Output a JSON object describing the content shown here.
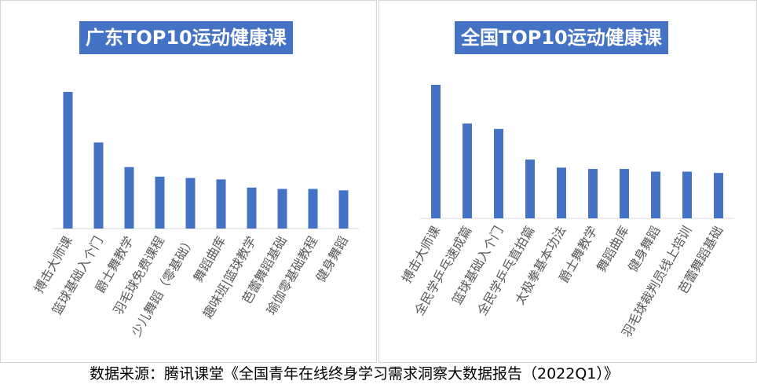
{
  "source": "数据来源：腾讯课堂《全国青年在线终身学习需求洞察大数据报告（2022Q1）》",
  "colors": {
    "bar": "#4472c4",
    "title_bg": "#4472c4",
    "axis": "#d9d9d9"
  },
  "chart_data": [
    {
      "type": "bar",
      "title": "广东TOP10运动健康课",
      "categories": [
        "搏击大师课",
        "篮球基础入个门",
        "爵士舞教学",
        "羽毛球免费课程",
        "少儿舞蹈（零基础）",
        "舞蹈曲库",
        "趣味班|篮球教学",
        "芭蕾舞蹈基础",
        "瑜伽零基础教程",
        "健身舞蹈"
      ],
      "values": [
        100,
        63,
        45,
        38,
        37,
        36,
        30,
        29,
        29,
        28
      ],
      "ylim": [
        0,
        100
      ],
      "grid": false,
      "legend": "none"
    },
    {
      "type": "bar",
      "title": "全国TOP10运动健康课",
      "categories": [
        "搏击大师课",
        "全民学乒乓速成篇",
        "篮球基础入个门",
        "全民学乒乓直拍篇",
        "太极拳基本功法",
        "爵士舞教学",
        "舞蹈曲库",
        "健身舞蹈",
        "羽毛球裁判员线上培训",
        "芭蕾舞蹈基础"
      ],
      "values": [
        100,
        71,
        67,
        44,
        38,
        37,
        37,
        35,
        35,
        34
      ],
      "ylim": [
        0,
        100
      ],
      "grid": false,
      "legend": "none"
    }
  ]
}
